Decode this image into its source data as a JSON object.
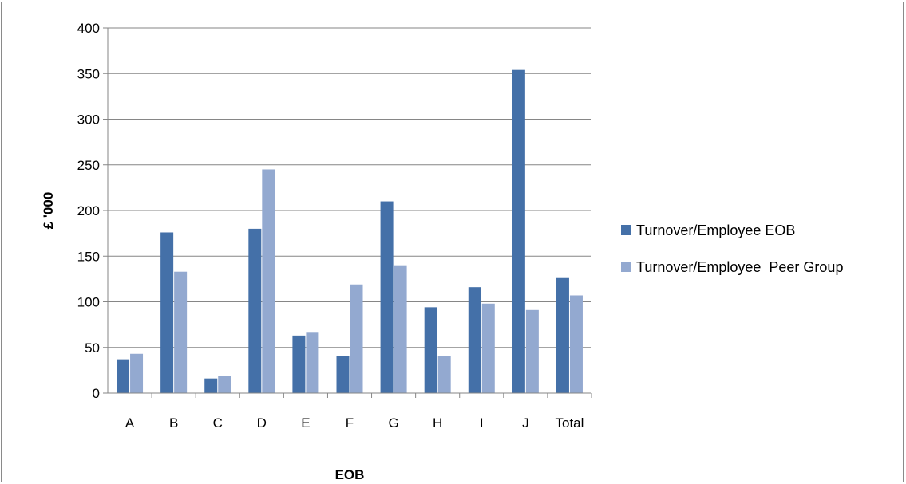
{
  "chart_data": {
    "type": "bar",
    "title": "",
    "xlabel": "EOB",
    "ylabel": "£ '000",
    "categories": [
      "A",
      "B",
      "C",
      "D",
      "E",
      "F",
      "G",
      "H",
      "I",
      "J",
      "Total"
    ],
    "series": [
      {
        "name": "Turnover/Employee EOB",
        "color": "#4470A8",
        "values": [
          37,
          176,
          16,
          180,
          63,
          41,
          210,
          94,
          116,
          354,
          126
        ]
      },
      {
        "name": "Turnover/Employee  Peer Group",
        "color": "#93A9D0",
        "values": [
          43,
          133,
          19,
          245,
          67,
          119,
          140,
          41,
          98,
          91,
          107
        ]
      }
    ],
    "ylim": [
      0,
      400
    ],
    "yticks": [
      0,
      50,
      100,
      150,
      200,
      250,
      300,
      350,
      400
    ],
    "grid": true,
    "legend_position": "right"
  }
}
